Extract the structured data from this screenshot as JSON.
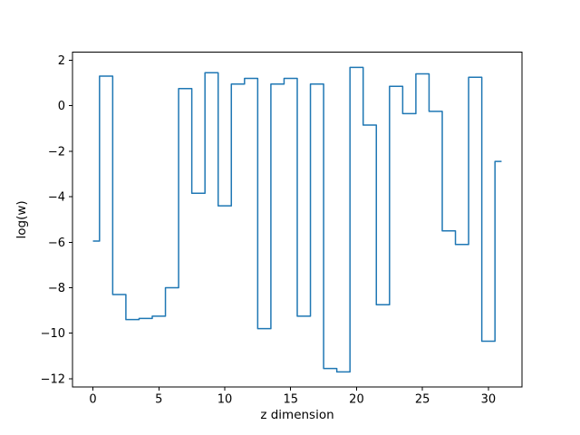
{
  "figure": {
    "background_color": "#ffffff",
    "line_color": "#1f77b4",
    "axes_color": "#000000"
  },
  "chart_data": {
    "type": "line",
    "drawstyle": "steps-mid",
    "title": "",
    "xlabel": "z dimension",
    "ylabel": "log(w)",
    "x": [
      0,
      1,
      2,
      3,
      4,
      5,
      6,
      7,
      8,
      9,
      10,
      11,
      12,
      13,
      14,
      15,
      16,
      17,
      18,
      19,
      20,
      21,
      22,
      23,
      24,
      25,
      26,
      27,
      28,
      29,
      30,
      31
    ],
    "y": [
      -5.95,
      1.3,
      -8.3,
      -9.4,
      -9.35,
      -9.25,
      -8.0,
      0.75,
      -3.85,
      1.45,
      -4.4,
      0.95,
      1.2,
      -9.8,
      0.95,
      1.2,
      -9.25,
      0.95,
      -11.55,
      -11.7,
      1.68,
      -0.85,
      -8.75,
      0.85,
      -0.35,
      1.4,
      -0.25,
      -5.5,
      -6.1,
      1.25,
      -10.35,
      -2.45
    ],
    "xlim": [
      -1.55,
      32.55
    ],
    "ylim": [
      -12.37,
      2.35
    ],
    "xticks": [
      0,
      5,
      10,
      15,
      20,
      25,
      30
    ],
    "yticks": [
      2,
      0,
      -2,
      -4,
      -6,
      -8,
      -10,
      -12
    ],
    "grid": false,
    "legend": null
  }
}
